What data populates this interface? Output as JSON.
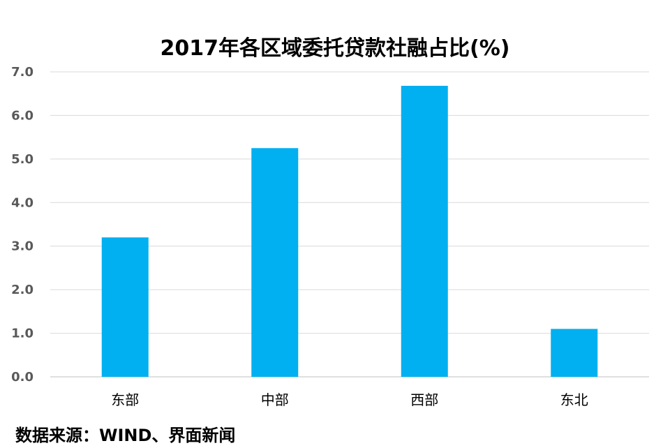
{
  "chart_data": {
    "type": "bar",
    "title": "2017年各区域委托贷款社融占比(%)",
    "categories": [
      "东部",
      "中部",
      "西部",
      "东北"
    ],
    "values": [
      3.2,
      5.25,
      6.68,
      1.1
    ],
    "ylim": [
      0,
      7
    ],
    "yticks": [
      "0.0",
      "1.0",
      "2.0",
      "3.0",
      "4.0",
      "5.0",
      "6.0",
      "7.0"
    ],
    "xlabel": "",
    "ylabel": "",
    "grid": true,
    "bar_color": "#00B0F0"
  },
  "source_text": "数据来源：WIND、界面新闻"
}
